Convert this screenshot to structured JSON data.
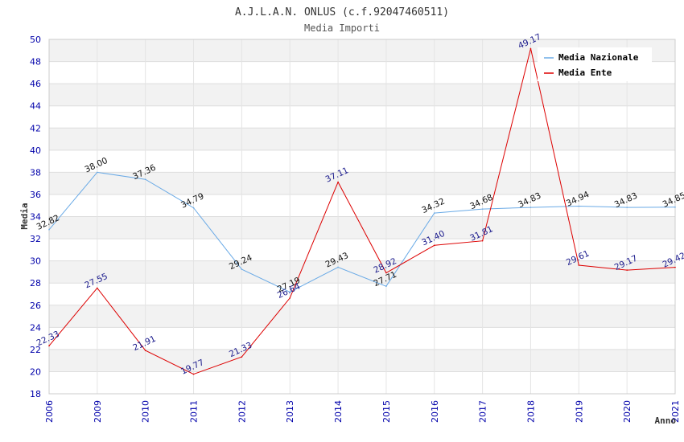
{
  "chart_data": {
    "type": "line",
    "title": "A.J.L.A.N. ONLUS (c.f.92047460511)",
    "subtitle": "Media Importi",
    "xlabel": "Anno",
    "ylabel": "Media",
    "ylim": [
      18,
      50
    ],
    "ystep": 2,
    "categories": [
      "2006",
      "2009",
      "2010",
      "2011",
      "2012",
      "2013",
      "2014",
      "2015",
      "2016",
      "2017",
      "2018",
      "2019",
      "2020",
      "2021"
    ],
    "series": [
      {
        "name": "Media Nazionale",
        "color": "#6aaae6",
        "label_color": "#111111",
        "values": [
          32.82,
          38.0,
          37.36,
          34.79,
          29.24,
          27.19,
          29.43,
          27.71,
          34.32,
          34.68,
          34.83,
          34.94,
          34.83,
          34.85
        ],
        "labels": [
          "32.82",
          "38.00",
          "37.36",
          "34.79",
          "29.24",
          "27.19",
          "29.43",
          "27.71",
          "34.32",
          "34.68",
          "34.83",
          "34.94",
          "34.83",
          "34.85"
        ]
      },
      {
        "name": "Media Ente",
        "color": "#dd0000",
        "label_color": "#1a1a8c",
        "values": [
          22.33,
          27.55,
          21.91,
          19.77,
          21.33,
          26.64,
          37.11,
          28.92,
          31.4,
          31.81,
          49.17,
          29.61,
          29.17,
          29.42
        ],
        "labels": [
          "22.33",
          "27.55",
          "21.91",
          "19.77",
          "21.33",
          "26.64",
          "37.11",
          "28.92",
          "31.40",
          "31.81",
          "49.17",
          "29.61",
          "29.17",
          "29.42"
        ]
      }
    ],
    "grid": true,
    "legend_position": "top-right"
  }
}
